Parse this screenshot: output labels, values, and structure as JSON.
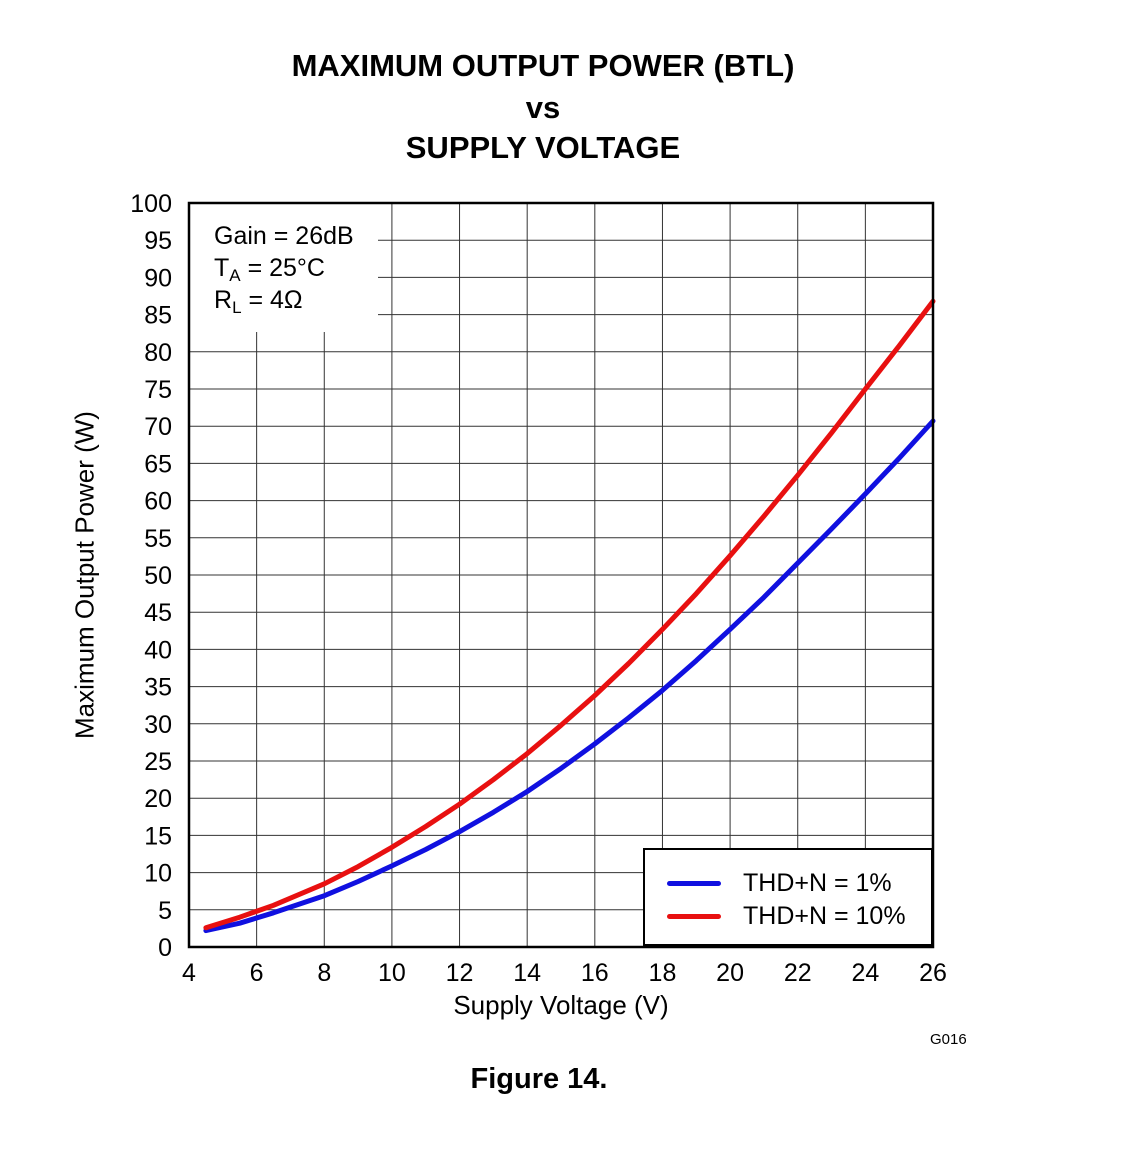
{
  "title": {
    "line1": "MAXIMUM OUTPUT POWER (BTL)",
    "line2": "vs",
    "line3": "SUPPLY VOLTAGE"
  },
  "conditions": {
    "gain": "Gain = 26dB",
    "temp_symbol": "T",
    "temp_sub": "A",
    "temp_value": " = 25°C",
    "load_symbol": "R",
    "load_sub": "L",
    "load_value": " = 4Ω"
  },
  "figure_code": "G016",
  "caption": "Figure 14.",
  "chart_data": {
    "type": "line",
    "title": "MAXIMUM OUTPUT POWER (BTL) vs SUPPLY VOLTAGE",
    "xlabel": "Supply Voltage (V)",
    "ylabel": "Maximum Output Power (W)",
    "xlim": [
      4,
      26
    ],
    "ylim": [
      0,
      100
    ],
    "x_ticks": [
      4,
      6,
      8,
      10,
      12,
      14,
      16,
      18,
      20,
      22,
      24,
      26
    ],
    "y_ticks": [
      0,
      5,
      10,
      15,
      20,
      25,
      30,
      35,
      40,
      45,
      50,
      55,
      60,
      65,
      70,
      75,
      80,
      85,
      90,
      95,
      100
    ],
    "grid": true,
    "legend_position": "bottom-right",
    "series": [
      {
        "name": "THD+N = 1%",
        "color": "#1010e0",
        "x": [
          4.5,
          5.5,
          6.5,
          8,
          9,
          10,
          11,
          12,
          13,
          14,
          15,
          16,
          17,
          18,
          19,
          20,
          21,
          22,
          23,
          24,
          25,
          26
        ],
        "y": [
          2.2,
          3.2,
          4.6,
          6.9,
          8.8,
          10.9,
          13.1,
          15.5,
          18.1,
          20.9,
          24.0,
          27.3,
          30.8,
          34.5,
          38.5,
          42.7,
          47.0,
          51.6,
          56.2,
          60.9,
          65.7,
          70.7
        ]
      },
      {
        "name": "THD+N = 10%",
        "color": "#e81010",
        "x": [
          4.5,
          5.5,
          6.5,
          8,
          9,
          10,
          11,
          12,
          13,
          14,
          15,
          16,
          17,
          18,
          19,
          20,
          21,
          22,
          23,
          24,
          25,
          26
        ],
        "y": [
          2.6,
          4.0,
          5.6,
          8.5,
          10.8,
          13.4,
          16.2,
          19.2,
          22.5,
          26.0,
          29.8,
          33.8,
          38.1,
          42.7,
          47.5,
          52.6,
          57.9,
          63.4,
          69.1,
          75.0,
          80.8,
          86.8
        ]
      }
    ]
  }
}
